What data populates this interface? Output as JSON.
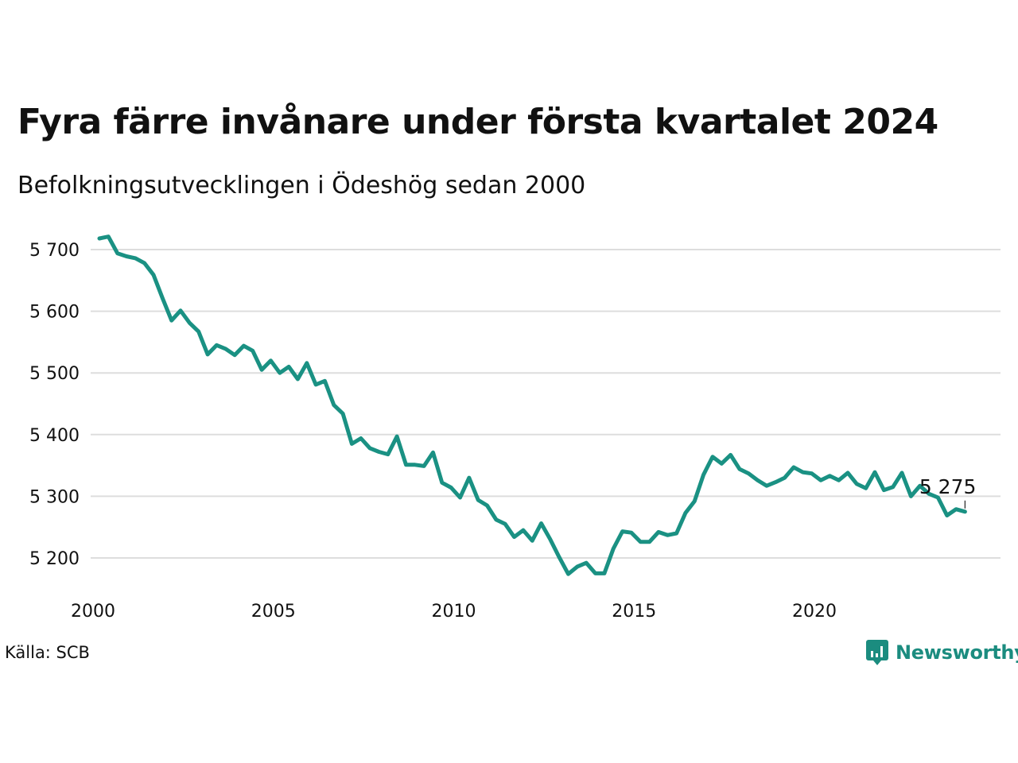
{
  "title": "Fyra färre invånare under första kvartalet 2024",
  "subtitle": "Befolkningsutvecklingen i Ödeshög sedan 2000",
  "source": "Källa: SCB",
  "brand": {
    "name": "Newsworthy",
    "color": "#1b8c7f"
  },
  "colors": {
    "line": "#1a9183",
    "grid": "#dddddd"
  },
  "chart_data": {
    "type": "line",
    "title": "Fyra färre invånare under första kvartalet 2024",
    "subtitle": "Befolkningsutvecklingen i Ödeshög sedan 2000",
    "xlabel": "",
    "ylabel": "",
    "xlim": [
      2000,
      2024.25
    ],
    "ylim": [
      5150,
      5720
    ],
    "x_ticks": [
      2000,
      2005,
      2010,
      2015,
      2020
    ],
    "x_tick_labels": [
      "2000",
      "2005",
      "2010",
      "2015",
      "2020"
    ],
    "y_ticks": [
      5200,
      5300,
      5400,
      5500,
      5600,
      5700
    ],
    "y_tick_labels": [
      "5 200",
      "5 300",
      "5 400",
      "5 500",
      "5 600",
      "5 700"
    ],
    "grid": true,
    "end_label": "5 275",
    "series": [
      {
        "start_year": 2000,
        "step": 0.25,
        "values": [
          5718,
          5721,
          5694,
          5689,
          5686,
          5678,
          5659,
          5621,
          5585,
          5601,
          5581,
          5567,
          5530,
          5545,
          5539,
          5529,
          5544,
          5536,
          5505,
          5520,
          5500,
          5510,
          5490,
          5516,
          5481,
          5487,
          5448,
          5434,
          5385,
          5394,
          5378,
          5372,
          5368,
          5397,
          5351,
          5351,
          5349,
          5371,
          5322,
          5314,
          5298,
          5330,
          5294,
          5285,
          5262,
          5255,
          5234,
          5245,
          5228,
          5256,
          5230,
          5201,
          5174,
          5186,
          5192,
          5175,
          5175,
          5215,
          5243,
          5241,
          5226,
          5226,
          5242,
          5237,
          5240,
          5273,
          5292,
          5335,
          5364,
          5353,
          5367,
          5344,
          5337,
          5326,
          5317,
          5323,
          5330,
          5347,
          5339,
          5337,
          5326,
          5333,
          5326,
          5338,
          5320,
          5313,
          5339,
          5310,
          5315,
          5338,
          5300,
          5317,
          5304,
          5298,
          5269,
          5279,
          5275
        ]
      }
    ]
  }
}
